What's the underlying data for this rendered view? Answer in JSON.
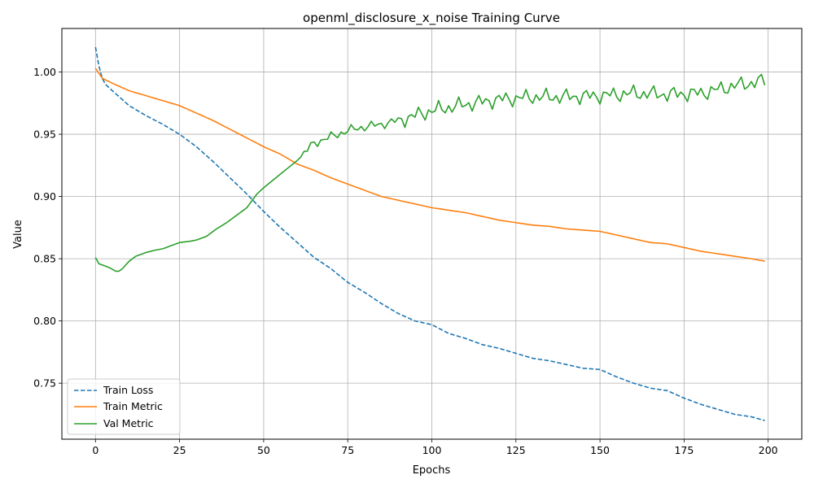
{
  "chart_data": {
    "type": "line",
    "title": "openml_disclosure_x_noise Training Curve",
    "xlabel": "Epochs",
    "ylabel": "Value",
    "xlim": [
      -10,
      210
    ],
    "ylim": [
      0.705,
      1.035
    ],
    "xticks": [
      0,
      25,
      50,
      75,
      100,
      125,
      150,
      175,
      200
    ],
    "yticks": [
      0.75,
      0.8,
      0.85,
      0.9,
      0.95,
      1.0
    ],
    "ytick_labels": [
      "0.75",
      "0.80",
      "0.85",
      "0.90",
      "0.95",
      "1.00"
    ],
    "grid": true,
    "legend_position": "lower-left",
    "x": {
      "start": 0,
      "end": 199,
      "step": 1
    },
    "series": [
      {
        "name": "Train Loss",
        "color": "#1f77b4",
        "style": "dashed",
        "anchors": [
          [
            0,
            1.02
          ],
          [
            1,
            1.005
          ],
          [
            2,
            0.995
          ],
          [
            3,
            0.99
          ],
          [
            5,
            0.985
          ],
          [
            10,
            0.973
          ],
          [
            15,
            0.965
          ],
          [
            20,
            0.958
          ],
          [
            25,
            0.95
          ],
          [
            30,
            0.94
          ],
          [
            35,
            0.928
          ],
          [
            40,
            0.915
          ],
          [
            45,
            0.902
          ],
          [
            50,
            0.888
          ],
          [
            55,
            0.875
          ],
          [
            60,
            0.863
          ],
          [
            65,
            0.851
          ],
          [
            70,
            0.842
          ],
          [
            75,
            0.831
          ],
          [
            80,
            0.823
          ],
          [
            85,
            0.814
          ],
          [
            90,
            0.806
          ],
          [
            95,
            0.8
          ],
          [
            100,
            0.797
          ],
          [
            105,
            0.79
          ],
          [
            110,
            0.786
          ],
          [
            115,
            0.781
          ],
          [
            120,
            0.778
          ],
          [
            125,
            0.774
          ],
          [
            130,
            0.77
          ],
          [
            135,
            0.768
          ],
          [
            140,
            0.765
          ],
          [
            145,
            0.762
          ],
          [
            150,
            0.761
          ],
          [
            155,
            0.755
          ],
          [
            160,
            0.75
          ],
          [
            165,
            0.746
          ],
          [
            170,
            0.744
          ],
          [
            175,
            0.738
          ],
          [
            180,
            0.733
          ],
          [
            185,
            0.729
          ],
          [
            190,
            0.725
          ],
          [
            195,
            0.723
          ],
          [
            199,
            0.72
          ]
        ]
      },
      {
        "name": "Train Metric",
        "color": "#ff7f0e",
        "style": "solid",
        "anchors": [
          [
            0,
            1.003
          ],
          [
            2,
            0.995
          ],
          [
            5,
            0.991
          ],
          [
            10,
            0.985
          ],
          [
            15,
            0.981
          ],
          [
            20,
            0.977
          ],
          [
            25,
            0.973
          ],
          [
            30,
            0.967
          ],
          [
            35,
            0.961
          ],
          [
            40,
            0.954
          ],
          [
            45,
            0.947
          ],
          [
            50,
            0.94
          ],
          [
            55,
            0.934
          ],
          [
            60,
            0.926
          ],
          [
            65,
            0.921
          ],
          [
            70,
            0.915
          ],
          [
            75,
            0.91
          ],
          [
            80,
            0.905
          ],
          [
            85,
            0.9
          ],
          [
            90,
            0.897
          ],
          [
            95,
            0.894
          ],
          [
            100,
            0.891
          ],
          [
            105,
            0.889
          ],
          [
            110,
            0.887
          ],
          [
            115,
            0.884
          ],
          [
            120,
            0.881
          ],
          [
            125,
            0.879
          ],
          [
            130,
            0.877
          ],
          [
            135,
            0.876
          ],
          [
            140,
            0.874
          ],
          [
            145,
            0.873
          ],
          [
            150,
            0.872
          ],
          [
            155,
            0.869
          ],
          [
            160,
            0.866
          ],
          [
            165,
            0.863
          ],
          [
            170,
            0.862
          ],
          [
            175,
            0.859
          ],
          [
            180,
            0.856
          ],
          [
            185,
            0.854
          ],
          [
            190,
            0.852
          ],
          [
            195,
            0.85
          ],
          [
            199,
            0.848
          ]
        ]
      },
      {
        "name": "Val Metric",
        "color": "#2ca02c",
        "style": "solid",
        "anchors": [
          [
            0,
            0.851
          ],
          [
            1,
            0.846
          ],
          [
            2,
            0.845
          ],
          [
            4,
            0.843
          ],
          [
            6,
            0.84
          ],
          [
            7,
            0.84
          ],
          [
            8,
            0.842
          ],
          [
            10,
            0.848
          ],
          [
            12,
            0.852
          ],
          [
            15,
            0.855
          ],
          [
            18,
            0.857
          ],
          [
            20,
            0.858
          ],
          [
            25,
            0.863
          ],
          [
            28,
            0.864
          ],
          [
            30,
            0.865
          ],
          [
            33,
            0.868
          ],
          [
            36,
            0.874
          ],
          [
            39,
            0.879
          ],
          [
            42,
            0.885
          ],
          [
            45,
            0.891
          ],
          [
            48,
            0.902
          ],
          [
            50,
            0.907
          ],
          [
            55,
            0.918
          ],
          [
            60,
            0.929
          ],
          [
            65,
            0.943
          ],
          [
            70,
            0.948
          ],
          [
            75,
            0.953
          ],
          [
            80,
            0.956
          ],
          [
            85,
            0.958
          ],
          [
            90,
            0.961
          ],
          [
            95,
            0.965
          ],
          [
            100,
            0.969
          ],
          [
            110,
            0.974
          ],
          [
            120,
            0.978
          ],
          [
            130,
            0.98
          ],
          [
            140,
            0.98
          ],
          [
            150,
            0.981
          ],
          [
            160,
            0.983
          ],
          [
            170,
            0.982
          ],
          [
            180,
            0.983
          ],
          [
            190,
            0.989
          ],
          [
            199,
            0.993
          ]
        ],
        "noise": 0.006
      }
    ]
  },
  "legend": {
    "items": [
      {
        "label": "Train Loss",
        "color": "#1f77b4",
        "style": "dashed"
      },
      {
        "label": "Train Metric",
        "color": "#ff7f0e",
        "style": "solid"
      },
      {
        "label": "Val Metric",
        "color": "#2ca02c",
        "style": "solid"
      }
    ]
  }
}
